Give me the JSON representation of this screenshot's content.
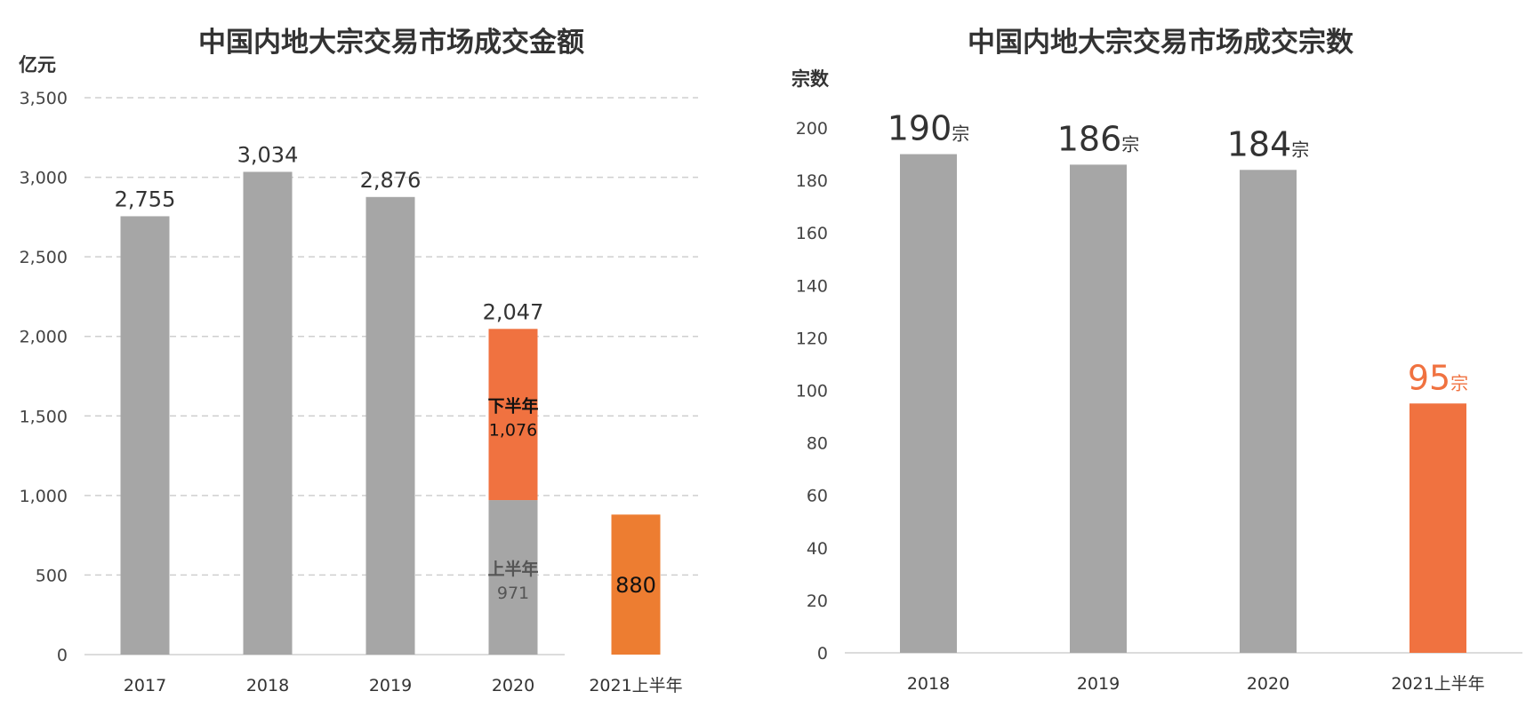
{
  "chart_data": [
    {
      "type": "bar",
      "title": "中国内地大宗交易市场成交金额",
      "ylabel": "亿元",
      "ylim": [
        0,
        3500
      ],
      "yticks": [
        "0",
        "500",
        "1,000",
        "1,500",
        "2,000",
        "2,500",
        "3,000",
        "3,500"
      ],
      "grid": true,
      "categories": [
        "2017",
        "2018",
        "2019",
        "2020",
        "2021上半年"
      ],
      "values": [
        2755,
        3034,
        2876,
        2047,
        880
      ],
      "value_labels": [
        "2,755",
        "3,034",
        "2,876",
        "2,047",
        "880"
      ],
      "stacked_segments": {
        "category": "2020",
        "segments": [
          {
            "name": "上半年",
            "value": 971,
            "label": "971",
            "color": "#a6a6a6"
          },
          {
            "name": "下半年",
            "value": 1076,
            "label": "1,076",
            "color": "#f07240"
          }
        ]
      },
      "colors": {
        "default": "#a6a6a6",
        "highlight": "#ed7d31"
      }
    },
    {
      "type": "bar",
      "title": "中国内地大宗交易市场成交宗数",
      "ylabel": "宗数",
      "ylim": [
        0,
        200
      ],
      "yticks": [
        "0",
        "20",
        "40",
        "60",
        "80",
        "100",
        "120",
        "140",
        "160",
        "180",
        "200"
      ],
      "grid": false,
      "categories": [
        "2018",
        "2019",
        "2020",
        "2021上半年"
      ],
      "values": [
        190,
        186,
        184,
        95
      ],
      "value_labels": [
        "190",
        "186",
        "184",
        "95"
      ],
      "unit_suffix": "宗",
      "colors": {
        "default": "#a6a6a6",
        "highlight": "#f07240"
      }
    }
  ]
}
